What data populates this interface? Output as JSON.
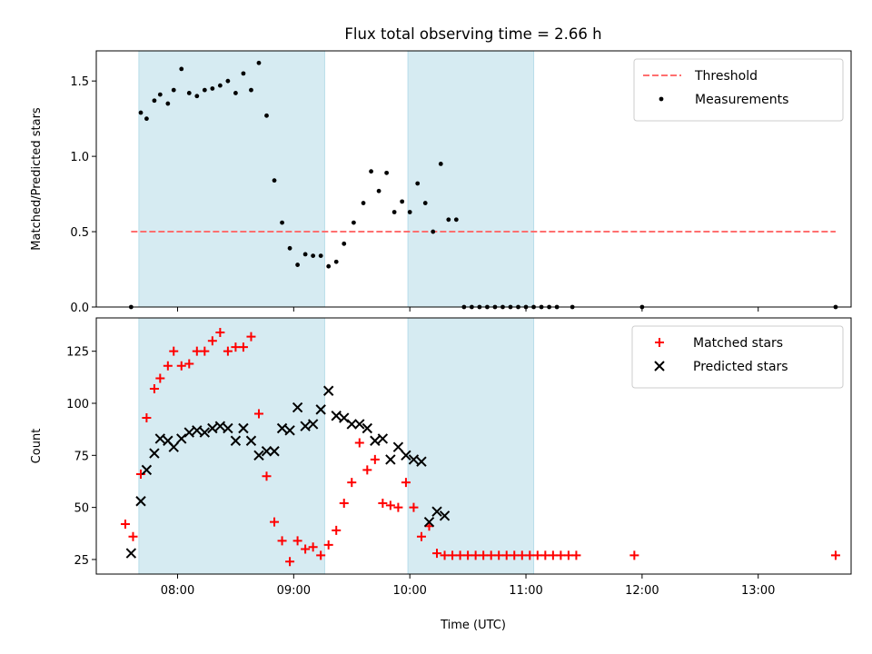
{
  "chart_data": [
    {
      "type": "scatter",
      "title": "Flux total observing time = 2.66 h",
      "xlabel": "",
      "ylabel": "Matched/Predicted stars",
      "xlim": [
        "07:18",
        "13:48"
      ],
      "ylim": [
        0,
        1.7
      ],
      "yticks": [
        0.0,
        0.5,
        1.0,
        1.5
      ],
      "ytick_labels": [
        "0.0",
        "0.5",
        "1.0",
        "1.5"
      ],
      "xticks": [
        "08:00",
        "09:00",
        "10:00",
        "11:00",
        "12:00",
        "13:00"
      ],
      "legend_position": "top-right",
      "shaded_intervals": [
        [
          "07:40",
          "09:16"
        ],
        [
          "09:59",
          "11:04"
        ]
      ],
      "shade_color": "#add8e6",
      "threshold": {
        "name": "Threshold",
        "y": 0.5,
        "x_range": [
          "07:36",
          "13:40"
        ],
        "color": "#ff6f6f",
        "style": "dashed"
      },
      "series": [
        {
          "name": "Measurements",
          "color": "#000000",
          "marker": "dot",
          "points": [
            [
              "07:36",
              0.0
            ],
            [
              "07:41",
              1.29
            ],
            [
              "07:44",
              1.25
            ],
            [
              "07:48",
              1.37
            ],
            [
              "07:51",
              1.41
            ],
            [
              "07:55",
              1.35
            ],
            [
              "07:58",
              1.44
            ],
            [
              "08:02",
              1.58
            ],
            [
              "08:06",
              1.42
            ],
            [
              "08:10",
              1.4
            ],
            [
              "08:14",
              1.44
            ],
            [
              "08:18",
              1.45
            ],
            [
              "08:22",
              1.47
            ],
            [
              "08:26",
              1.5
            ],
            [
              "08:30",
              1.42
            ],
            [
              "08:34",
              1.55
            ],
            [
              "08:38",
              1.44
            ],
            [
              "08:42",
              1.62
            ],
            [
              "08:46",
              1.27
            ],
            [
              "08:50",
              0.84
            ],
            [
              "08:54",
              0.56
            ],
            [
              "08:58",
              0.39
            ],
            [
              "09:02",
              0.28
            ],
            [
              "09:06",
              0.35
            ],
            [
              "09:10",
              0.34
            ],
            [
              "09:14",
              0.34
            ],
            [
              "09:18",
              0.27
            ],
            [
              "09:22",
              0.3
            ],
            [
              "09:26",
              0.42
            ],
            [
              "09:31",
              0.56
            ],
            [
              "09:36",
              0.69
            ],
            [
              "09:40",
              0.9
            ],
            [
              "09:44",
              0.77
            ],
            [
              "09:48",
              0.89
            ],
            [
              "09:52",
              0.63
            ],
            [
              "09:56",
              0.7
            ],
            [
              "10:00",
              0.63
            ],
            [
              "10:04",
              0.82
            ],
            [
              "10:08",
              0.69
            ],
            [
              "10:12",
              0.5
            ],
            [
              "10:16",
              0.95
            ],
            [
              "10:20",
              0.58
            ],
            [
              "10:24",
              0.58
            ],
            [
              "10:28",
              0.0
            ],
            [
              "10:32",
              0.0
            ],
            [
              "10:36",
              0.0
            ],
            [
              "10:40",
              0.0
            ],
            [
              "10:44",
              0.0
            ],
            [
              "10:48",
              0.0
            ],
            [
              "10:52",
              0.0
            ],
            [
              "10:56",
              0.0
            ],
            [
              "11:00",
              0.0
            ],
            [
              "11:04",
              0.0
            ],
            [
              "11:08",
              0.0
            ],
            [
              "11:12",
              0.0
            ],
            [
              "11:16",
              0.0
            ],
            [
              "11:24",
              0.0
            ],
            [
              "12:00",
              0.0
            ],
            [
              "13:40",
              0.0
            ]
          ]
        }
      ]
    },
    {
      "type": "scatter",
      "title": "",
      "xlabel": "Time (UTC)",
      "ylabel": "Count",
      "xlim": [
        "07:18",
        "13:48"
      ],
      "ylim": [
        18,
        141
      ],
      "yticks": [
        25,
        50,
        75,
        100,
        125
      ],
      "ytick_labels": [
        "25",
        "50",
        "75",
        "100",
        "125"
      ],
      "xticks": [
        "08:00",
        "09:00",
        "10:00",
        "11:00",
        "12:00",
        "13:00"
      ],
      "xtick_labels": [
        "08:00",
        "09:00",
        "10:00",
        "11:00",
        "12:00",
        "13:00"
      ],
      "legend_position": "top-right",
      "shaded_intervals": [
        [
          "07:40",
          "09:16"
        ],
        [
          "09:59",
          "11:04"
        ]
      ],
      "shade_color": "#add8e6",
      "series": [
        {
          "name": "Matched stars",
          "color": "#ff0000",
          "marker": "plus",
          "points": [
            [
              "07:33",
              42
            ],
            [
              "07:37",
              36
            ],
            [
              "07:41",
              66
            ],
            [
              "07:44",
              93
            ],
            [
              "07:48",
              107
            ],
            [
              "07:51",
              112
            ],
            [
              "07:55",
              118
            ],
            [
              "07:58",
              125
            ],
            [
              "08:02",
              118
            ],
            [
              "08:06",
              119
            ],
            [
              "08:10",
              125
            ],
            [
              "08:14",
              125
            ],
            [
              "08:18",
              130
            ],
            [
              "08:22",
              134
            ],
            [
              "08:26",
              125
            ],
            [
              "08:30",
              127
            ],
            [
              "08:34",
              127
            ],
            [
              "08:38",
              132
            ],
            [
              "08:42",
              95
            ],
            [
              "08:46",
              65
            ],
            [
              "08:50",
              43
            ],
            [
              "08:54",
              34
            ],
            [
              "08:58",
              24
            ],
            [
              "09:02",
              34
            ],
            [
              "09:06",
              30
            ],
            [
              "09:10",
              31
            ],
            [
              "09:14",
              27
            ],
            [
              "09:18",
              32
            ],
            [
              "09:22",
              39
            ],
            [
              "09:26",
              52
            ],
            [
              "09:30",
              62
            ],
            [
              "09:34",
              81
            ],
            [
              "09:38",
              68
            ],
            [
              "09:42",
              73
            ],
            [
              "09:46",
              52
            ],
            [
              "09:50",
              51
            ],
            [
              "09:54",
              50
            ],
            [
              "09:58",
              62
            ],
            [
              "10:02",
              50
            ],
            [
              "10:06",
              36
            ],
            [
              "10:10",
              41
            ],
            [
              "10:14",
              28
            ],
            [
              "10:18",
              27
            ],
            [
              "10:22",
              27
            ],
            [
              "10:26",
              27
            ],
            [
              "10:30",
              27
            ],
            [
              "10:34",
              27
            ],
            [
              "10:38",
              27
            ],
            [
              "10:42",
              27
            ],
            [
              "10:46",
              27
            ],
            [
              "10:50",
              27
            ],
            [
              "10:54",
              27
            ],
            [
              "10:58",
              27
            ],
            [
              "11:02",
              27
            ],
            [
              "11:06",
              27
            ],
            [
              "11:10",
              27
            ],
            [
              "11:14",
              27
            ],
            [
              "11:18",
              27
            ],
            [
              "11:22",
              27
            ],
            [
              "11:26",
              27
            ],
            [
              "11:56",
              27
            ],
            [
              "13:40",
              27
            ]
          ]
        },
        {
          "name": "Predicted stars",
          "color": "#000000",
          "marker": "x",
          "points": [
            [
              "07:36",
              28
            ],
            [
              "07:41",
              53
            ],
            [
              "07:44",
              68
            ],
            [
              "07:48",
              76
            ],
            [
              "07:51",
              83
            ],
            [
              "07:55",
              82
            ],
            [
              "07:58",
              79
            ],
            [
              "08:02",
              83
            ],
            [
              "08:06",
              86
            ],
            [
              "08:10",
              87
            ],
            [
              "08:14",
              86
            ],
            [
              "08:18",
              88
            ],
            [
              "08:22",
              89
            ],
            [
              "08:26",
              88
            ],
            [
              "08:30",
              82
            ],
            [
              "08:34",
              88
            ],
            [
              "08:38",
              82
            ],
            [
              "08:42",
              75
            ],
            [
              "08:46",
              77
            ],
            [
              "08:50",
              77
            ],
            [
              "08:54",
              88
            ],
            [
              "08:58",
              87
            ],
            [
              "09:02",
              98
            ],
            [
              "09:06",
              89
            ],
            [
              "09:10",
              90
            ],
            [
              "09:14",
              97
            ],
            [
              "09:18",
              106
            ],
            [
              "09:22",
              94
            ],
            [
              "09:26",
              93
            ],
            [
              "09:30",
              90
            ],
            [
              "09:34",
              90
            ],
            [
              "09:38",
              88
            ],
            [
              "09:42",
              82
            ],
            [
              "09:46",
              83
            ],
            [
              "09:50",
              73
            ],
            [
              "09:54",
              79
            ],
            [
              "09:58",
              75
            ],
            [
              "10:02",
              73
            ],
            [
              "10:06",
              72
            ],
            [
              "10:10",
              43
            ],
            [
              "10:14",
              48
            ],
            [
              "10:18",
              46
            ]
          ]
        }
      ]
    }
  ]
}
